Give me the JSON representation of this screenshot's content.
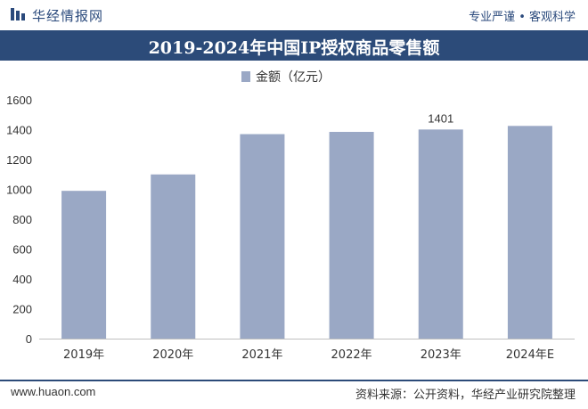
{
  "header": {
    "brand": "华经情报网",
    "slogan": "专业严谨 • 客观科学"
  },
  "footer": {
    "url": "www.huaon.com",
    "source": "资料来源：公开资料，华经产业研究院整理"
  },
  "colors": {
    "bar": "#9aa8c5",
    "title_band": "#2c4b79",
    "brand": "#2b4a7c"
  },
  "chart_data": {
    "type": "bar",
    "title": "2019-2024年中国IP授权商品零售额",
    "categories": [
      "2019年",
      "2020年",
      "2021年",
      "2022年",
      "2023年",
      "2024年E"
    ],
    "series": [
      {
        "name": "金额（亿元）",
        "values": [
          990,
          1100,
          1370,
          1385,
          1401,
          1425
        ]
      }
    ],
    "data_labels": [
      null,
      null,
      null,
      null,
      "1401",
      null
    ],
    "ylim": [
      0,
      1600
    ],
    "yticks": [
      0,
      200,
      400,
      600,
      800,
      1000,
      1200,
      1400,
      1600
    ],
    "grid": false,
    "legend_position": "top-left"
  }
}
